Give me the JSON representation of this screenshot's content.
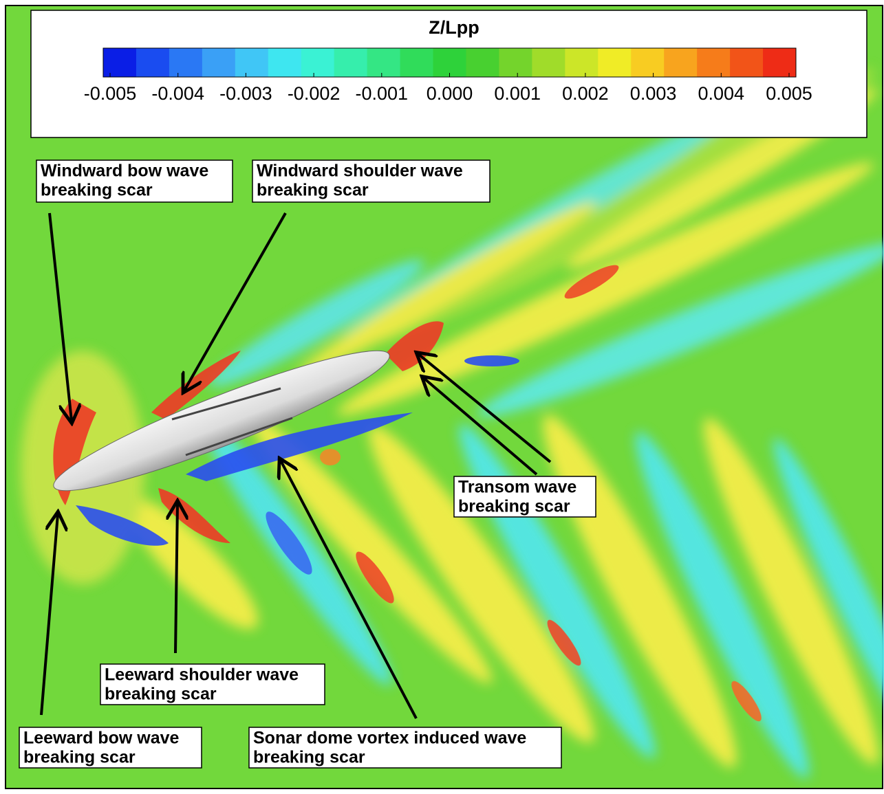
{
  "chart_data": {
    "type": "contour",
    "title": "Z/Lpp",
    "zlim": [
      -0.005,
      0.005
    ],
    "zticks": [
      {
        "value": -0.005,
        "label": "-0.005"
      },
      {
        "value": -0.004,
        "label": "-0.004"
      },
      {
        "value": -0.003,
        "label": "-0.003"
      },
      {
        "value": -0.002,
        "label": "-0.002"
      },
      {
        "value": -0.001,
        "label": "-0.001"
      },
      {
        "value": 0,
        "label": "0.000"
      },
      {
        "value": 0.001,
        "label": "0.001"
      },
      {
        "value": 0.002,
        "label": "0.002"
      },
      {
        "value": 0.003,
        "label": "0.003"
      },
      {
        "value": 0.004,
        "label": "0.004"
      },
      {
        "value": 0.005,
        "label": "0.005"
      }
    ],
    "colormap": [
      "#0a1ee6",
      "#1a4cf0",
      "#2a78f4",
      "#3aa0f6",
      "#40c6f6",
      "#3ee6f0",
      "#3af2d4",
      "#36eeac",
      "#34e684",
      "#30dc5a",
      "#2ed23a",
      "#48d030",
      "#74d42c",
      "#a0dc2a",
      "#cce628",
      "#f0ec26",
      "#f8cc22",
      "#f8a41e",
      "#f67c1a",
      "#f25418",
      "#ee2c16"
    ],
    "annotations": [
      {
        "lines": [
          "Windward bow wave",
          "breaking scar"
        ]
      },
      {
        "lines": [
          "Windward shoulder wave",
          "breaking scar"
        ]
      },
      {
        "lines": [
          "Transom wave",
          "breaking scar"
        ]
      },
      {
        "lines": [
          "Leeward shoulder wave",
          "breaking scar"
        ]
      },
      {
        "lines": [
          "Leeward bow wave",
          "breaking scar"
        ]
      },
      {
        "lines": [
          "Sonar dome vortex induced wave",
          "breaking scar"
        ]
      }
    ]
  }
}
